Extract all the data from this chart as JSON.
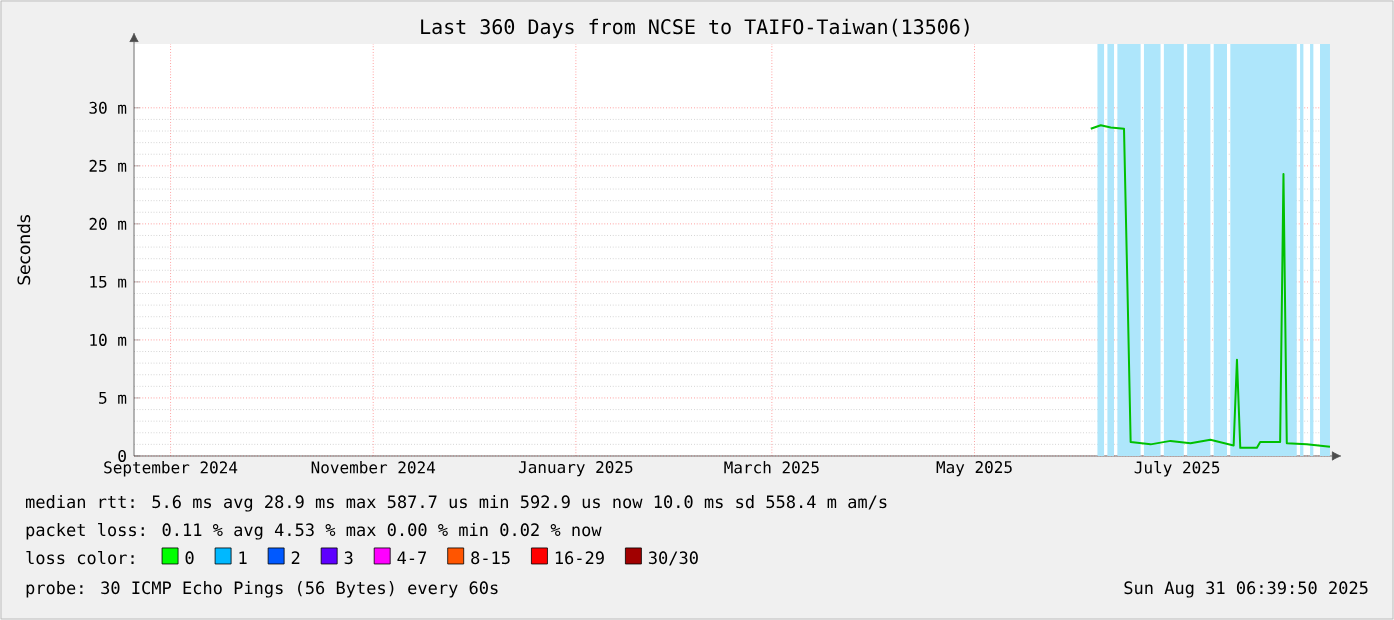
{
  "chart_data": {
    "type": "line",
    "title": "Last 360 Days from NCSE to TAIFO-Taiwan(13506)",
    "ylabel": "Seconds",
    "x": [
      "2025-06-20",
      "2025-06-23",
      "2025-06-26",
      "2025-06-30",
      "2025-07-01",
      "2025-07-02",
      "2025-07-08",
      "2025-07-14",
      "2025-07-20",
      "2025-07-26",
      "2025-08-02",
      "2025-08-03",
      "2025-08-04",
      "2025-08-09",
      "2025-08-10",
      "2025-08-16",
      "2025-08-17",
      "2025-08-18",
      "2025-08-24",
      "2025-08-31"
    ],
    "series": [
      {
        "color": "#00c000",
        "values": [
          28.2,
          28.5,
          28.3,
          28.2,
          15,
          1.2,
          1.0,
          1.3,
          1.1,
          1.4,
          0.9,
          8.3,
          0.7,
          0.7,
          1.2,
          1.2,
          24.3,
          1.1,
          1.0,
          0.8
        ]
      },
      {
        "name": "0",
        "color": "#00ff00",
        "values": [
          null,
          null,
          null,
          null,
          null,
          null,
          null,
          null,
          null,
          null,
          null,
          null,
          null,
          null,
          null,
          null,
          null,
          null,
          null,
          null
        ]
      },
      {
        "name": "1",
        "color": "#00b8ff",
        "values": [
          null,
          null,
          null,
          null,
          null,
          null,
          null,
          null,
          null,
          null,
          null,
          null,
          null,
          null,
          null,
          null,
          null,
          null,
          null,
          null
        ]
      },
      {
        "name": "2",
        "color": "#0059ff",
        "values": [
          null,
          null,
          null,
          null,
          null,
          null,
          null,
          null,
          null,
          null,
          null,
          null,
          null,
          null,
          null,
          null,
          null,
          null,
          null,
          null
        ]
      },
      {
        "name": "3",
        "color": "#5e00ff",
        "values": [
          null,
          null,
          null,
          null,
          null,
          null,
          null,
          null,
          null,
          null,
          null,
          null,
          null,
          null,
          null,
          null,
          null,
          null,
          null,
          null
        ]
      },
      {
        "name": "4-7",
        "color": "#ff00ff",
        "values": [
          null,
          null,
          null,
          null,
          null,
          null,
          null,
          null,
          null,
          null,
          null,
          null,
          null,
          null,
          null,
          null,
          null,
          null,
          null,
          null
        ]
      },
      {
        "name": "8-15",
        "color": "#ff5500",
        "values": [
          null,
          null,
          null,
          null,
          null,
          null,
          null,
          null,
          null,
          null,
          null,
          null,
          null,
          null,
          null,
          null,
          null,
          null,
          null,
          null
        ]
      },
      {
        "name": "16-29",
        "color": "#ff0000",
        "values": [
          null,
          null,
          null,
          null,
          null,
          null,
          null,
          null,
          null,
          null,
          null,
          null,
          null,
          null,
          null,
          null,
          null,
          null,
          null,
          null
        ]
      },
      {
        "name": "30/30",
        "color": "#a10000",
        "values": [
          null,
          null,
          null,
          null,
          null,
          null,
          null,
          null,
          null,
          null,
          null,
          null,
          null,
          null,
          null,
          null,
          null,
          null,
          null,
          null
        ]
      }
    ],
    "legend": "bottom",
    "legend_title": "loss color:",
    "xlim": [
      "2024-09-05",
      "2025-08-31"
    ],
    "xticks": [
      {
        "value": "2024-09-16",
        "label": "September 2024"
      },
      {
        "value": "2024-11-16",
        "label": "November 2024"
      },
      {
        "value": "2025-01-16",
        "label": "January 2025"
      },
      {
        "value": "2025-03-16",
        "label": "March 2025"
      },
      {
        "value": "2025-05-16",
        "label": "May 2025"
      },
      {
        "value": "2025-07-16",
        "label": "July 2025"
      }
    ],
    "ylim": [
      0,
      35.5
    ],
    "yticks": [
      0,
      {
        "value": 5,
        "label": "5 m"
      },
      {
        "value": 10,
        "label": "10 m"
      },
      {
        "value": 15,
        "label": "15 m"
      },
      {
        "value": 20,
        "label": "20 m"
      },
      {
        "value": 25,
        "label": "25 m"
      },
      {
        "value": 30,
        "label": "30 m"
      }
    ],
    "grid": true,
    "bands": [
      {
        "axis": "x",
        "from": "2025-06-22",
        "to": "2025-06-24",
        "color": "#aee6fb"
      },
      {
        "axis": "x",
        "from": "2025-06-25",
        "to": "2025-06-27",
        "color": "#aee6fb"
      },
      {
        "axis": "x",
        "from": "2025-06-28",
        "to": "2025-07-05",
        "color": "#aee6fb"
      },
      {
        "axis": "x",
        "from": "2025-07-06",
        "to": "2025-07-11",
        "color": "#aee6fb"
      },
      {
        "axis": "x",
        "from": "2025-07-12",
        "to": "2025-07-18",
        "color": "#aee6fb"
      },
      {
        "axis": "x",
        "from": "2025-07-19",
        "to": "2025-07-26",
        "color": "#aee6fb"
      },
      {
        "axis": "x",
        "from": "2025-07-27",
        "to": "2025-07-31",
        "color": "#aee6fb"
      },
      {
        "axis": "x",
        "from": "2025-08-01",
        "to": "2025-08-21",
        "color": "#aee6fb"
      },
      {
        "axis": "x",
        "from": "2025-08-22",
        "to": "2025-08-23",
        "color": "#aee6fb"
      },
      {
        "axis": "x",
        "from": "2025-08-25",
        "to": "2025-08-26",
        "color": "#aee6fb"
      },
      {
        "axis": "x",
        "from": "2025-08-28",
        "to": "2025-08-31",
        "color": "#aee6fb"
      }
    ],
    "annotations": [
      "median rtt: 5.6 ms avg 28.9 ms max 587.7 us min 592.9 us now 10.0 ms sd 558.4 m am/s",
      "packet loss: 0.11 % avg 4.53 % max 0.00 % min 0.02 % now",
      "probe: 30 ICMP Echo Pings (56 Bytes) every 60s",
      "Sun Aug 31 06:39:50 2025"
    ]
  }
}
